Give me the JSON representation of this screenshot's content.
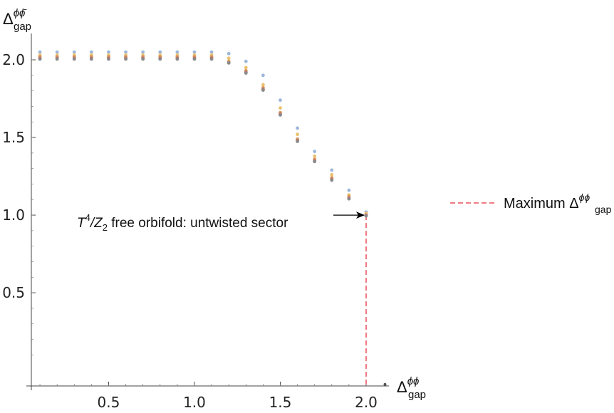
{
  "chart_data": {
    "type": "scatter",
    "xlabel": {
      "base": "Δ",
      "sup": "ϕϕ",
      "sub": "gap"
    },
    "ylabel": {
      "base": "Δ",
      "sup": "ϕϕ̄",
      "sub": "gap"
    },
    "xlim": [
      0.05,
      2.12
    ],
    "ylim": [
      -0.1,
      2.17
    ],
    "xticks": [
      "0.5",
      "1.0",
      "1.5",
      "2.0"
    ],
    "xtick_values": [
      0.5,
      1.0,
      1.5,
      2.0
    ],
    "yticks": [
      "0.5",
      "1.0",
      "1.5",
      "2.0"
    ],
    "ytick_values": [
      0.5,
      1.0,
      1.5,
      2.0
    ],
    "grid": false,
    "legend_position": "right",
    "x": [
      0.1,
      0.2,
      0.3,
      0.4,
      0.5,
      0.6,
      0.7,
      0.8,
      0.9,
      1.0,
      1.1,
      1.2,
      1.3,
      1.4,
      1.5,
      1.6,
      1.7,
      1.8,
      1.9,
      2.0
    ],
    "series": [
      {
        "color": "#9db7d9",
        "values": [
          2.05,
          2.05,
          2.05,
          2.05,
          2.05,
          2.05,
          2.05,
          2.05,
          2.05,
          2.05,
          2.05,
          2.04,
          1.99,
          1.9,
          1.74,
          1.56,
          1.41,
          1.29,
          1.16,
          1.02
        ]
      },
      {
        "color": "#ecc16f",
        "values": [
          2.03,
          2.03,
          2.03,
          2.03,
          2.03,
          2.03,
          2.03,
          2.03,
          2.03,
          2.03,
          2.03,
          2.01,
          1.95,
          1.84,
          1.69,
          1.52,
          1.38,
          1.26,
          1.13,
          1.01
        ]
      },
      {
        "color": "#d99a5f",
        "values": [
          2.02,
          2.02,
          2.02,
          2.02,
          2.02,
          2.02,
          2.02,
          2.02,
          2.02,
          2.02,
          2.02,
          1.99,
          1.93,
          1.82,
          1.66,
          1.49,
          1.36,
          1.24,
          1.12,
          1.0
        ]
      },
      {
        "color": "#c96d62",
        "values": [
          2.01,
          2.01,
          2.01,
          2.01,
          2.01,
          2.01,
          2.01,
          2.01,
          2.01,
          2.01,
          2.01,
          1.98,
          1.92,
          1.81,
          1.65,
          1.48,
          1.35,
          1.23,
          1.11,
          1.0
        ]
      },
      {
        "color": "#8a8a8a",
        "values": [
          2.005,
          2.005,
          2.005,
          2.005,
          2.005,
          2.005,
          2.005,
          2.005,
          2.005,
          2.005,
          2.005,
          1.98,
          1.915,
          1.805,
          1.645,
          1.475,
          1.345,
          1.225,
          1.105,
          0.995
        ]
      }
    ],
    "extra_point": {
      "x": 2.11,
      "y": -0.09,
      "color": "#555555"
    },
    "reference_line": {
      "color": "#f07a82",
      "x": 2.0,
      "y_from": 1.0,
      "y_to": -0.1,
      "legend": {
        "text": "Maximum Δ",
        "sup": "ϕϕ",
        "sub": "gap"
      }
    },
    "annotation": {
      "parts": [
        "T",
        "4",
        "/Z",
        "2",
        " free orbifold: untwisted sector"
      ],
      "target": {
        "x": 2.0,
        "y": 1.0
      }
    }
  }
}
